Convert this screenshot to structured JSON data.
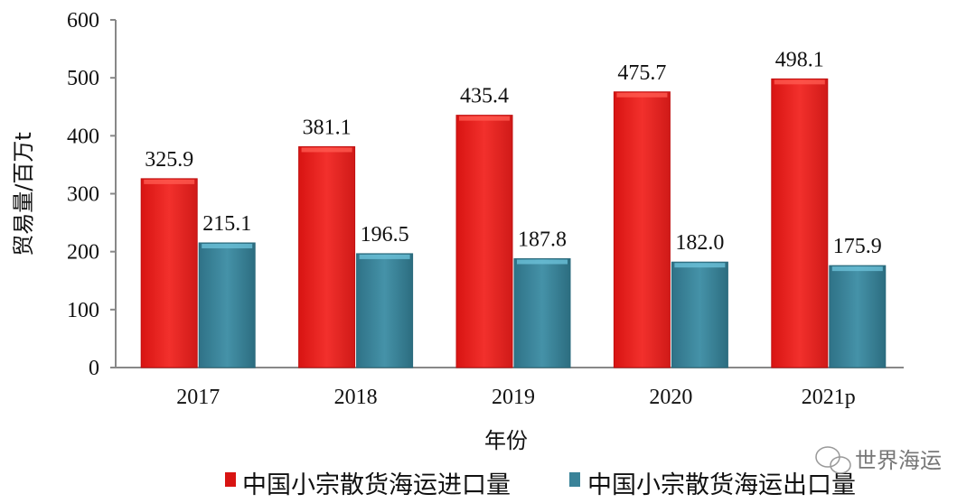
{
  "chart_data": {
    "type": "bar",
    "categories": [
      "2017",
      "2018",
      "2019",
      "2020",
      "2021p"
    ],
    "series": [
      {
        "name": "中国小宗散货海运进口量",
        "values": [
          325.9,
          381.1,
          435.4,
          475.7,
          498.1
        ],
        "labels": [
          "325.9",
          "381.1",
          "435.4",
          "475.7",
          "498.1"
        ],
        "color": "#e8201e"
      },
      {
        "name": "中国小宗散货海运出口量",
        "values": [
          215.1,
          196.5,
          187.8,
          182.0,
          175.9
        ],
        "labels": [
          "215.1",
          "196.5",
          "187.8",
          "182.0",
          "175.9"
        ],
        "color": "#3a8399"
      }
    ],
    "xlabel": "年份",
    "ylabel": "贸易量/百万t",
    "ylim": [
      0,
      600
    ],
    "yticks": [
      "0",
      "100",
      "200",
      "300",
      "400",
      "500",
      "600"
    ],
    "grid": false,
    "legend": "bottom"
  },
  "watermark": "世界海运"
}
